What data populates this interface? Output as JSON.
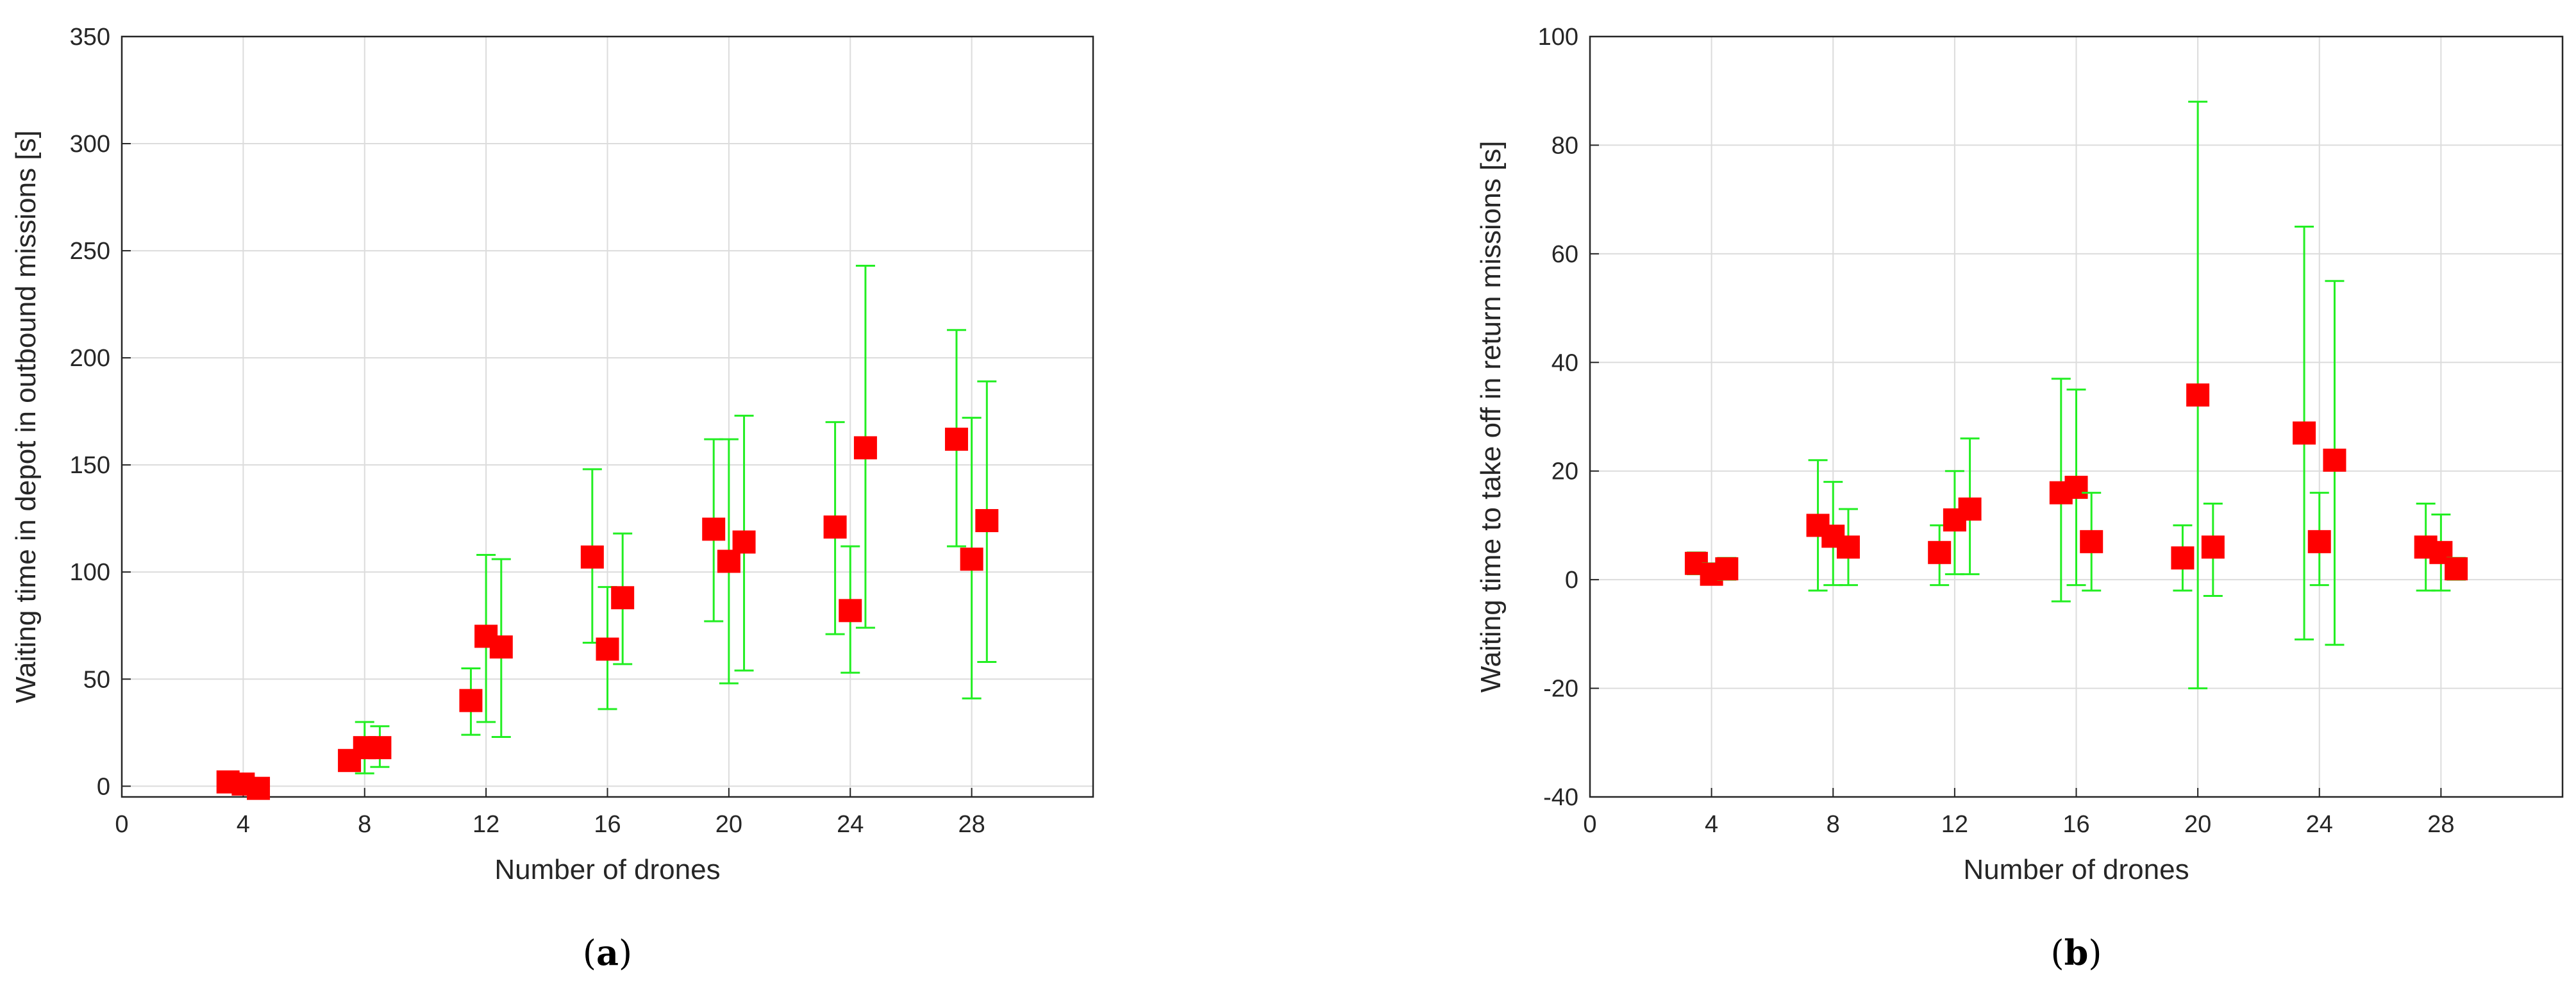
{
  "colors": {
    "marker": "#ff0000",
    "errorbar": "#22ee22",
    "grid": "#dcdcdc",
    "axis": "#262626"
  },
  "chart_data": [
    {
      "type": "scatter",
      "caption": "a",
      "title": "",
      "xlabel": "Number of drones",
      "ylabel": "Waiting time in depot in outbound missions [s]",
      "xlim": [
        0,
        32
      ],
      "ylim": [
        -5,
        350
      ],
      "xticks": [
        0,
        4,
        8,
        12,
        16,
        20,
        24,
        28
      ],
      "yticks": [
        0,
        50,
        100,
        150,
        200,
        250,
        300,
        350
      ],
      "grid": true,
      "points": [
        {
          "x": 3.5,
          "y": 2,
          "low": 0,
          "high": 4
        },
        {
          "x": 4.0,
          "y": 1,
          "low": 0,
          "high": 3
        },
        {
          "x": 4.5,
          "y": -1,
          "low": -2,
          "high": 2
        },
        {
          "x": 7.5,
          "y": 12,
          "low": 8,
          "high": 16
        },
        {
          "x": 8.0,
          "y": 18,
          "low": 6,
          "high": 30
        },
        {
          "x": 8.5,
          "y": 18,
          "low": 9,
          "high": 28
        },
        {
          "x": 11.5,
          "y": 40,
          "low": 24,
          "high": 55
        },
        {
          "x": 12.0,
          "y": 70,
          "low": 30,
          "high": 108
        },
        {
          "x": 12.5,
          "y": 65,
          "low": 23,
          "high": 106
        },
        {
          "x": 15.5,
          "y": 107,
          "low": 67,
          "high": 148
        },
        {
          "x": 16.0,
          "y": 64,
          "low": 36,
          "high": 93
        },
        {
          "x": 16.5,
          "y": 88,
          "low": 57,
          "high": 118
        },
        {
          "x": 19.5,
          "y": 120,
          "low": 77,
          "high": 162
        },
        {
          "x": 20.0,
          "y": 105,
          "low": 48,
          "high": 162
        },
        {
          "x": 20.5,
          "y": 114,
          "low": 54,
          "high": 173
        },
        {
          "x": 23.5,
          "y": 121,
          "low": 71,
          "high": 170
        },
        {
          "x": 24.0,
          "y": 82,
          "low": 53,
          "high": 112
        },
        {
          "x": 24.5,
          "y": 158,
          "low": 74,
          "high": 243
        },
        {
          "x": 27.5,
          "y": 162,
          "low": 112,
          "high": 213
        },
        {
          "x": 28.0,
          "y": 106,
          "low": 41,
          "high": 172
        },
        {
          "x": 28.5,
          "y": 124,
          "low": 58,
          "high": 189
        }
      ]
    },
    {
      "type": "scatter",
      "caption": "b",
      "title": "",
      "xlabel": "Number of drones",
      "ylabel": "Waiting time to take off in return missions [s]",
      "xlim": [
        0,
        32
      ],
      "ylim": [
        -40,
        100
      ],
      "xticks": [
        0,
        4,
        8,
        12,
        16,
        20,
        24,
        28
      ],
      "yticks": [
        -40,
        -20,
        0,
        20,
        40,
        60,
        80,
        100
      ],
      "grid": true,
      "points": [
        {
          "x": 3.5,
          "y": 3,
          "low": 1,
          "high": 5
        },
        {
          "x": 4.0,
          "y": 1,
          "low": 0,
          "high": 3
        },
        {
          "x": 4.5,
          "y": 2,
          "low": 0,
          "high": 4
        },
        {
          "x": 7.5,
          "y": 10,
          "low": -2,
          "high": 22
        },
        {
          "x": 8.0,
          "y": 8,
          "low": -1,
          "high": 18
        },
        {
          "x": 8.5,
          "y": 6,
          "low": -1,
          "high": 13
        },
        {
          "x": 11.5,
          "y": 5,
          "low": -1,
          "high": 10
        },
        {
          "x": 12.0,
          "y": 11,
          "low": 1,
          "high": 20
        },
        {
          "x": 12.5,
          "y": 13,
          "low": 1,
          "high": 26
        },
        {
          "x": 15.5,
          "y": 16,
          "low": -4,
          "high": 37
        },
        {
          "x": 16.0,
          "y": 17,
          "low": -1,
          "high": 35
        },
        {
          "x": 16.5,
          "y": 7,
          "low": -2,
          "high": 16
        },
        {
          "x": 19.5,
          "y": 4,
          "low": -2,
          "high": 10
        },
        {
          "x": 20.0,
          "y": 34,
          "low": -20,
          "high": 88
        },
        {
          "x": 20.5,
          "y": 6,
          "low": -3,
          "high": 14
        },
        {
          "x": 23.5,
          "y": 27,
          "low": -11,
          "high": 65
        },
        {
          "x": 24.0,
          "y": 7,
          "low": -1,
          "high": 16
        },
        {
          "x": 24.5,
          "y": 22,
          "low": -12,
          "high": 55
        },
        {
          "x": 27.5,
          "y": 6,
          "low": -2,
          "high": 14
        },
        {
          "x": 28.0,
          "y": 5,
          "low": -2,
          "high": 12
        },
        {
          "x": 28.5,
          "y": 2,
          "low": 0,
          "high": 4
        }
      ]
    }
  ]
}
